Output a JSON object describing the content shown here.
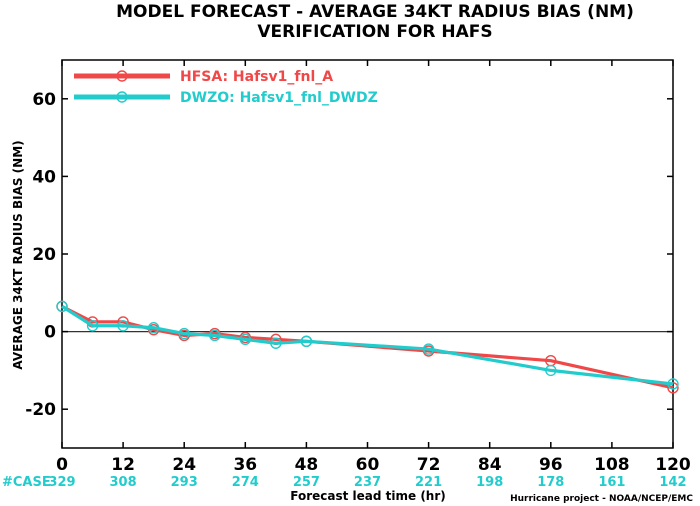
{
  "chart_data": {
    "type": "line",
    "title": "MODEL FORECAST - AVERAGE 34KT RADIUS BIAS (NM)",
    "subtitle": "VERIFICATION FOR HAFS",
    "xlabel": "Forecast lead time (hr)",
    "ylabel": "AVERAGE 34KT RADIUS BIAS (NM)",
    "xlim": [
      0,
      120
    ],
    "ylim": [
      -30,
      70
    ],
    "xticks": [
      0,
      12,
      24,
      36,
      48,
      60,
      72,
      84,
      96,
      108,
      120
    ],
    "yticks": [
      -20,
      0,
      20,
      40,
      60
    ],
    "zero_line": true,
    "legend_position": "top-left",
    "series": [
      {
        "name": "HFSA: Hafsv1_fnl_A",
        "color": "#f04848",
        "x": [
          0,
          6,
          12,
          18,
          24,
          30,
          36,
          42,
          48,
          72,
          96,
          120
        ],
        "y": [
          6.5,
          2.5,
          2.5,
          0.5,
          -1,
          -0.5,
          -1.5,
          -2,
          -2.5,
          -5,
          -7.5,
          -14.5
        ]
      },
      {
        "name": "DWZO: Hafsv1_fnl_DWDZ",
        "color": "#22cccc",
        "x": [
          0,
          6,
          12,
          18,
          24,
          30,
          36,
          42,
          48,
          72,
          96,
          120
        ],
        "y": [
          6.5,
          1.5,
          1.5,
          1,
          -0.5,
          -1,
          -2,
          -3,
          -2.5,
          -4.5,
          -10,
          -13.5
        ]
      }
    ],
    "case_label": "#CASE",
    "case_counts": [
      {
        "x": 0,
        "label": "329"
      },
      {
        "x": 12,
        "label": "308"
      },
      {
        "x": 24,
        "label": "293"
      },
      {
        "x": 36,
        "label": "274"
      },
      {
        "x": 48,
        "label": "257"
      },
      {
        "x": 60,
        "label": "237"
      },
      {
        "x": 72,
        "label": "221"
      },
      {
        "x": 84,
        "label": "198"
      },
      {
        "x": 96,
        "label": "178"
      },
      {
        "x": 108,
        "label": "161"
      },
      {
        "x": 120,
        "label": "142"
      }
    ],
    "case_color": "#22cccc",
    "credit": "Hurricane project - NOAA/NCEP/EMC"
  }
}
